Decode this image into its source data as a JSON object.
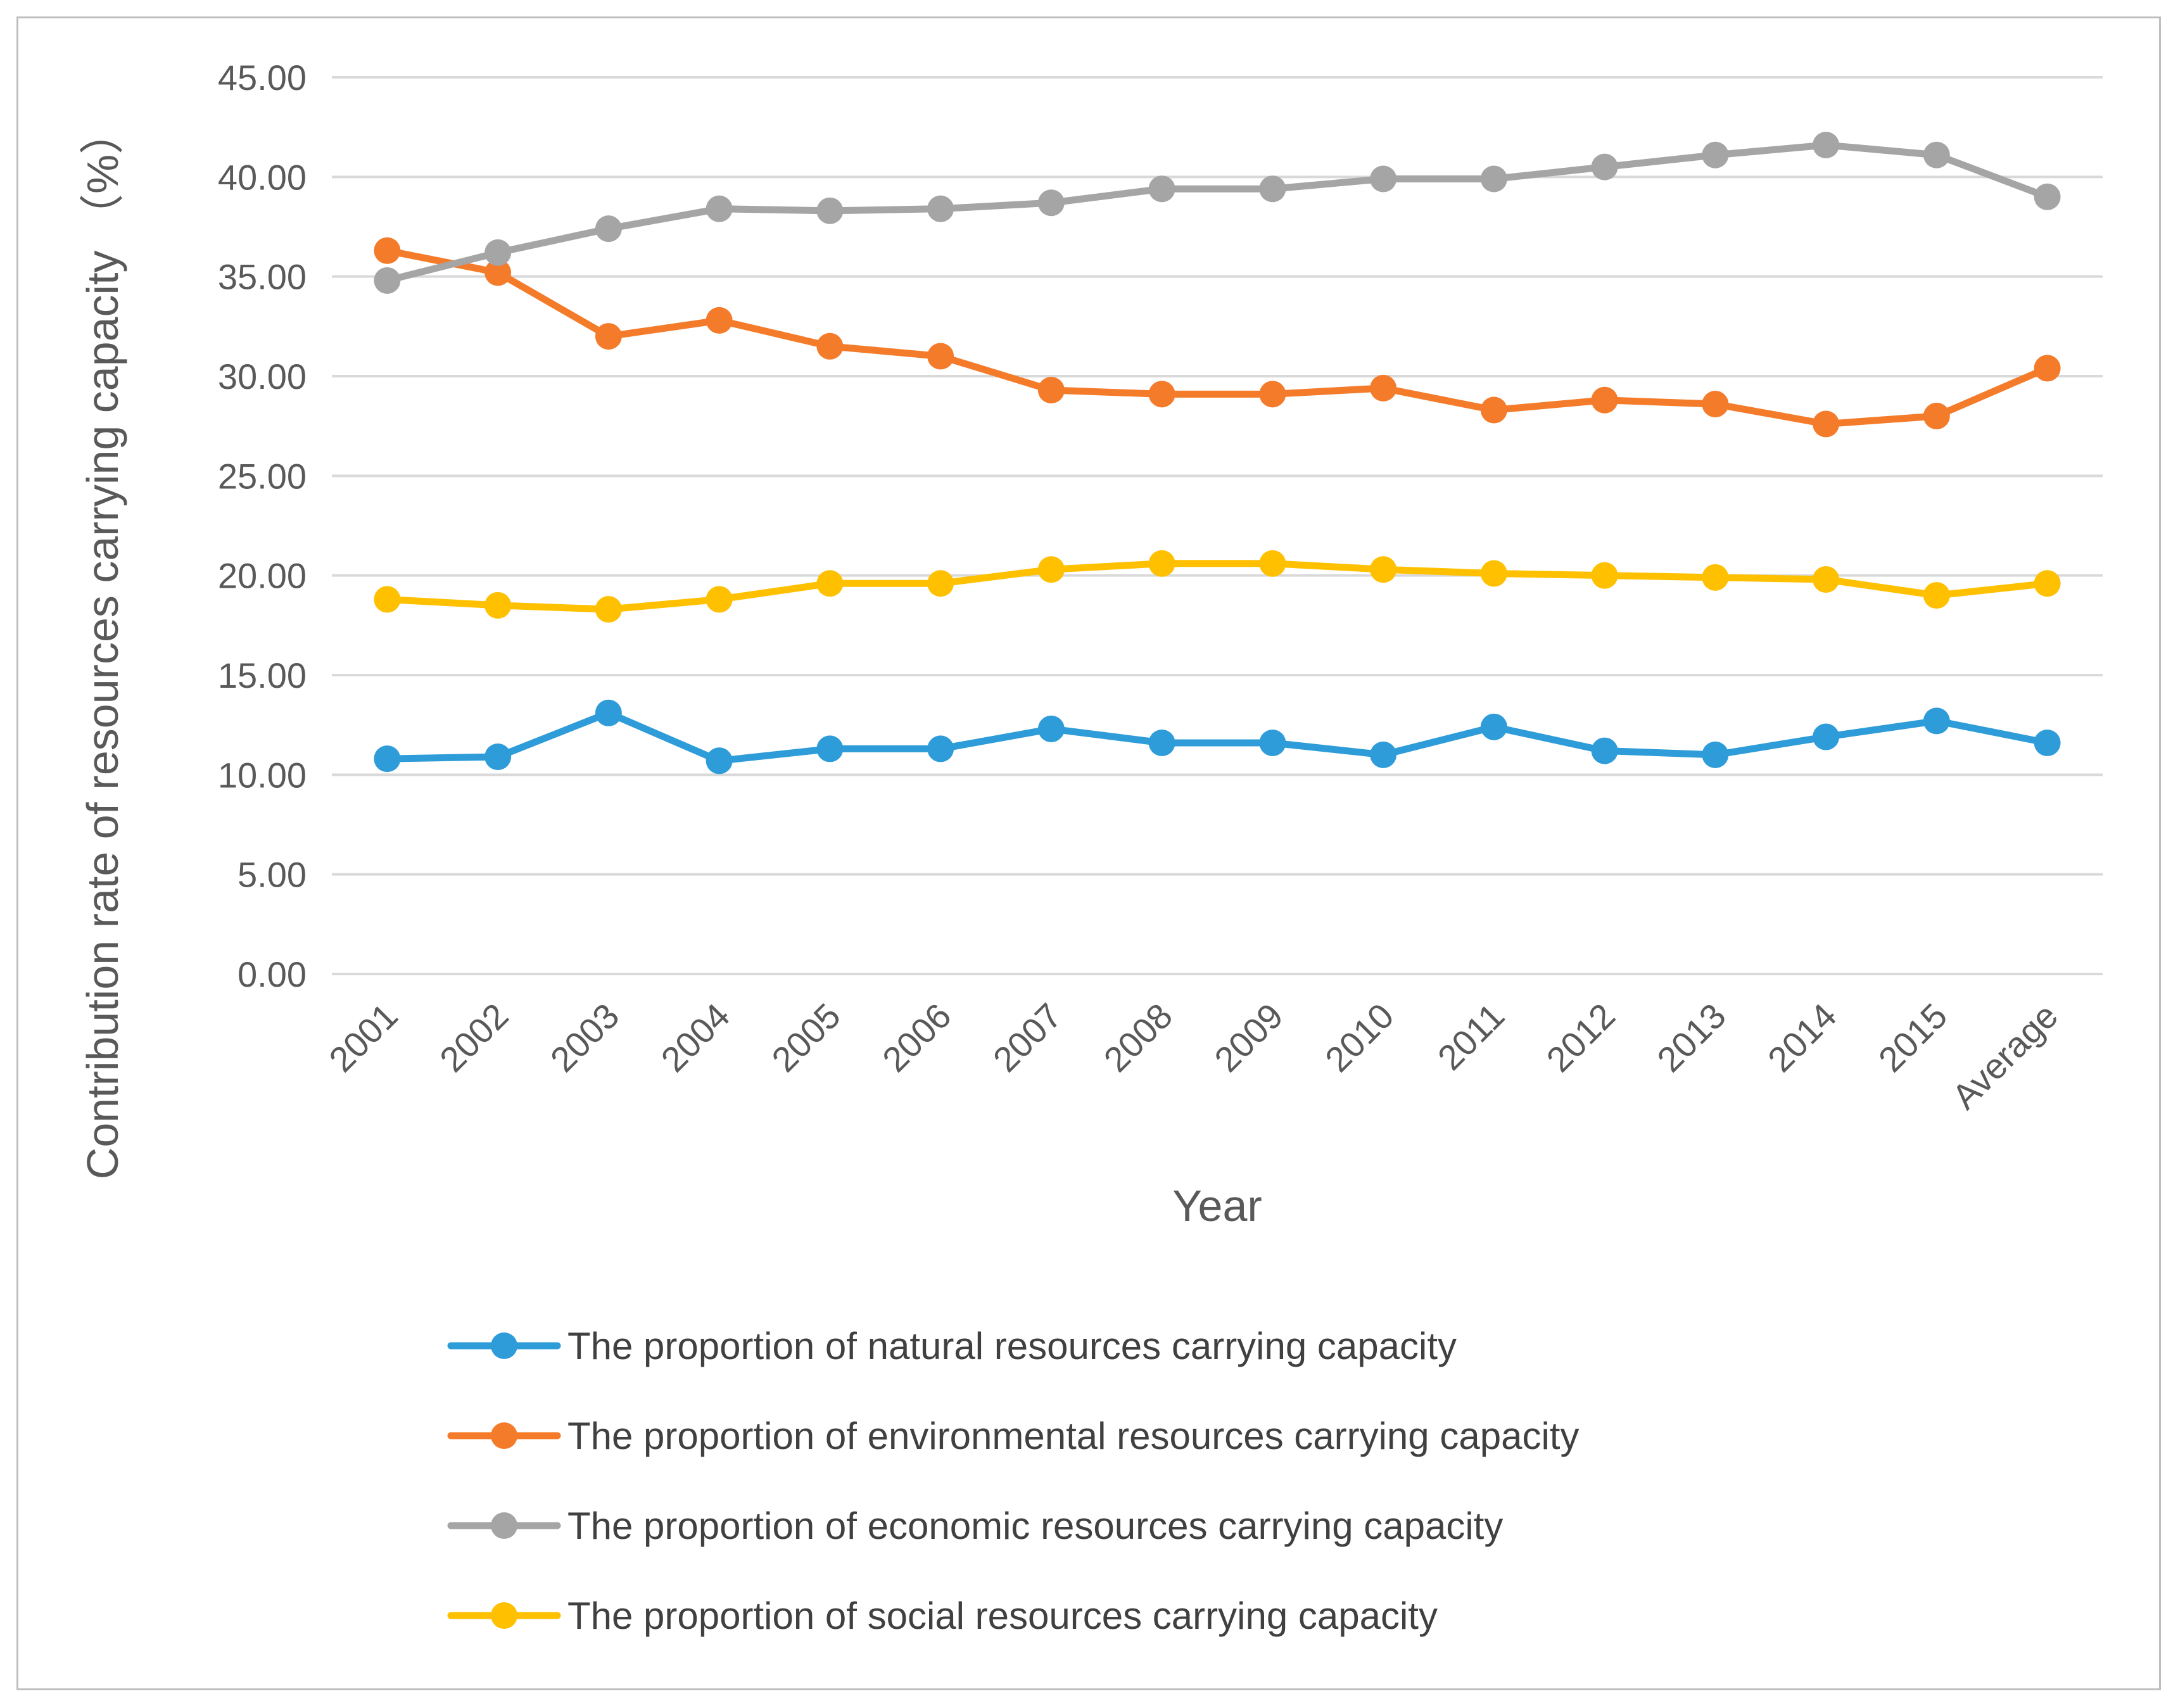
{
  "chart_data": {
    "type": "line",
    "title": "",
    "xlabel": "Year",
    "ylabel": "Contribution rate of resources carrying capacity （%）",
    "categories": [
      "2001",
      "2002",
      "2003",
      "2004",
      "2005",
      "2006",
      "2007",
      "2008",
      "2009",
      "2010",
      "2011",
      "2012",
      "2013",
      "2014",
      "2015",
      "Average"
    ],
    "ylim": [
      0,
      45
    ],
    "yticks": [
      "0.00",
      "5.00",
      "10.00",
      "15.00",
      "20.00",
      "25.00",
      "30.00",
      "35.00",
      "40.00",
      "45.00"
    ],
    "grid": true,
    "legend_position": "bottom",
    "series": [
      {
        "name": "The proportion of natural resources carrying capacity",
        "color": "#2e9cd8",
        "values": [
          10.8,
          10.9,
          13.1,
          10.7,
          11.3,
          11.3,
          12.3,
          11.6,
          11.6,
          11.0,
          12.4,
          11.2,
          11.0,
          11.9,
          12.7,
          11.6
        ]
      },
      {
        "name": "The proportion of environmental resources carrying capacity",
        "color": "#f47b2a",
        "values": [
          36.3,
          35.2,
          32.0,
          32.8,
          31.5,
          31.0,
          29.3,
          29.1,
          29.1,
          29.4,
          28.3,
          28.8,
          28.6,
          27.6,
          28.0,
          30.4
        ]
      },
      {
        "name": "The proportion of economic resources carrying capacity",
        "color": "#a5a5a5",
        "values": [
          34.8,
          36.2,
          37.4,
          38.4,
          38.3,
          38.4,
          38.7,
          39.4,
          39.4,
          39.9,
          39.9,
          40.5,
          41.1,
          41.6,
          41.1,
          39.0
        ]
      },
      {
        "name": "The proportion of social resources carrying capacity",
        "color": "#ffc000",
        "values": [
          18.8,
          18.5,
          18.3,
          18.8,
          19.6,
          19.6,
          20.3,
          20.6,
          20.6,
          20.3,
          20.1,
          20.0,
          19.9,
          19.8,
          19.0,
          19.6
        ]
      }
    ]
  }
}
